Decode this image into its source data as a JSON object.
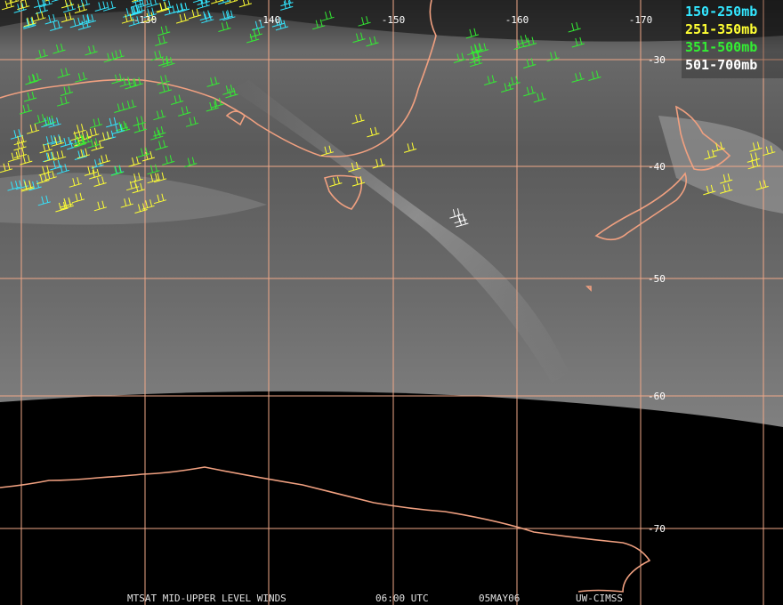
{
  "legend": [
    {
      "name": "150-250mb",
      "color": "#33e6ff"
    },
    {
      "name": "251-350mb",
      "color": "#ffff33"
    },
    {
      "name": "351-500mb",
      "color": "#33ee33"
    },
    {
      "name": "501-700mb",
      "color": "#ffffff"
    }
  ],
  "longitude_labels": [
    "-130",
    "-140",
    "-150",
    "-160",
    "-170"
  ],
  "latitude_labels": [
    "-30",
    "-40",
    "-50",
    "-60",
    "-70"
  ],
  "footer": {
    "product": "MTSAT MID-UPPER LEVEL WINDS",
    "time": "06:00 UTC",
    "date": "05MAY06",
    "source": "UW-CIMSS"
  }
}
